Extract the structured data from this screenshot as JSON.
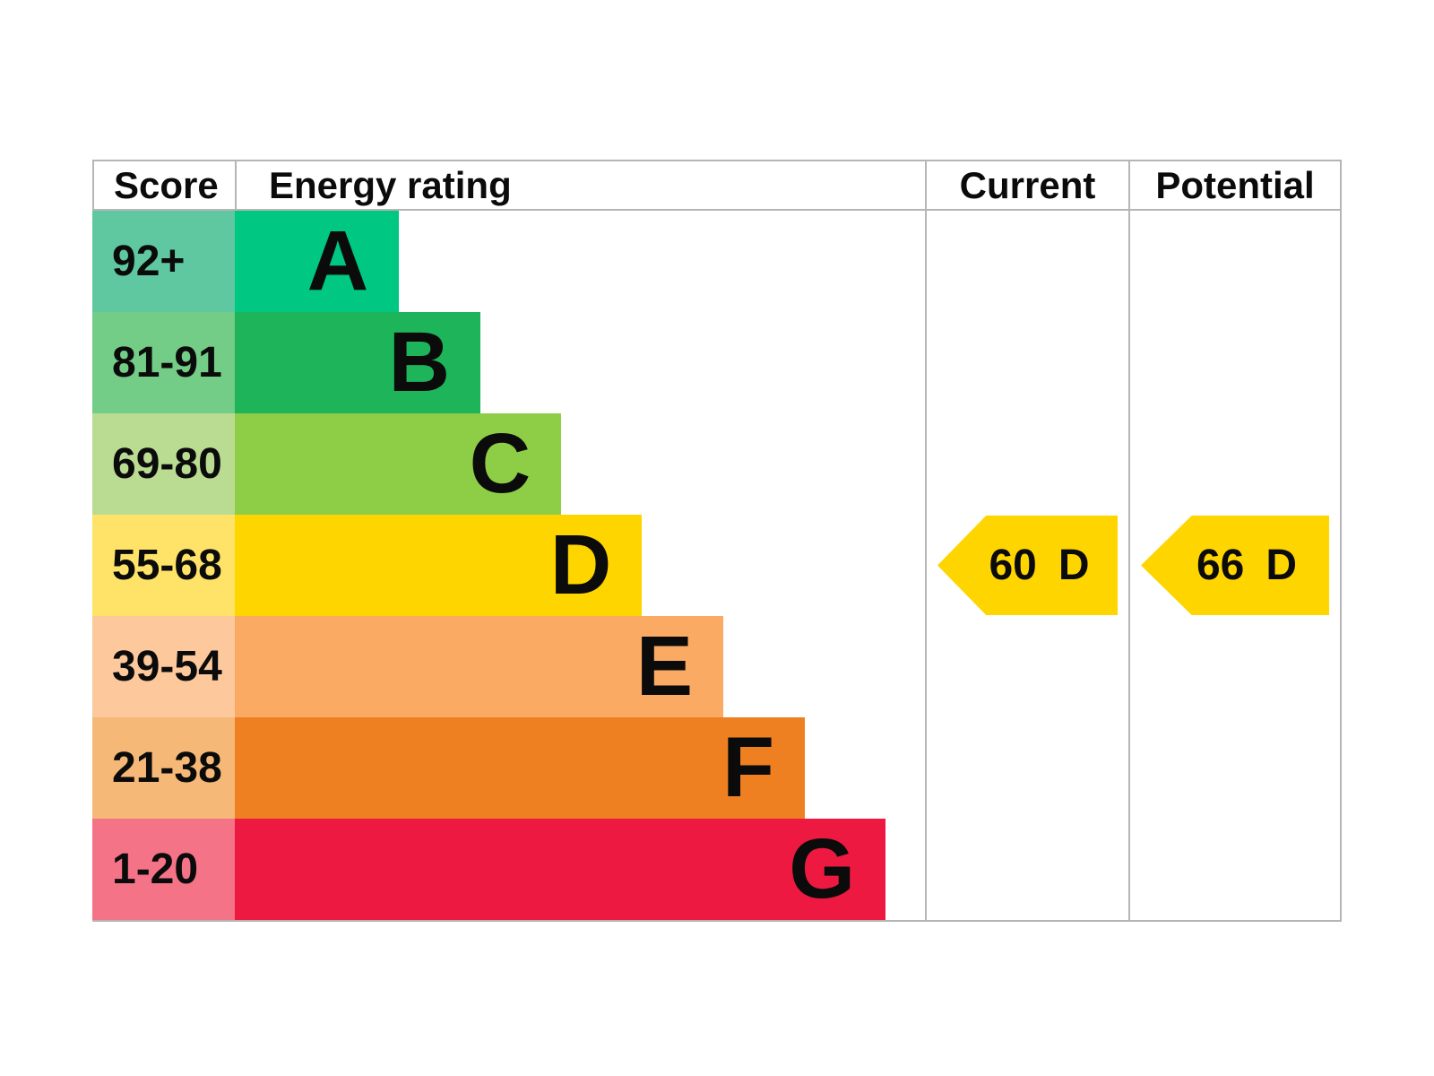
{
  "chart_data": {
    "type": "bar",
    "description": "Energy performance certificate (EPC) rating chart",
    "columns": {
      "score": "Score",
      "energy_rating": "Energy rating",
      "current": "Current",
      "potential": "Potential"
    },
    "bands": [
      {
        "score_range": "92+",
        "letter": "A",
        "bar_color": "#00c781",
        "score_tint": "#5fc8a0",
        "bar_width_pct": 23.8
      },
      {
        "score_range": "81-91",
        "letter": "B",
        "bar_color": "#1eb45a",
        "score_tint": "#73cd87",
        "bar_width_pct": 35.6
      },
      {
        "score_range": "69-80",
        "letter": "C",
        "bar_color": "#8dce46",
        "score_tint": "#b9dc92",
        "bar_width_pct": 47.3
      },
      {
        "score_range": "55-68",
        "letter": "D",
        "bar_color": "#ffd500",
        "score_tint": "#ffe369",
        "bar_width_pct": 59.0
      },
      {
        "score_range": "39-54",
        "letter": "E",
        "bar_color": "#fbaa64",
        "score_tint": "#fdc99c",
        "bar_width_pct": 70.8
      },
      {
        "score_range": "21-38",
        "letter": "F",
        "bar_color": "#ee8022",
        "score_tint": "#f5b877",
        "bar_width_pct": 82.6
      },
      {
        "score_range": "1-20",
        "letter": "G",
        "bar_color": "#ed1941",
        "score_tint": "#f47387",
        "bar_width_pct": 94.3
      }
    ],
    "current": {
      "value": "60",
      "band": "D",
      "arrow_color": "#ffd500"
    },
    "potential": {
      "value": "66",
      "band": "D",
      "arrow_color": "#ffd500"
    },
    "layout": {
      "border_color": "#b5b5b5",
      "background": "#ffffff",
      "grid": "off",
      "legend": "none"
    }
  }
}
